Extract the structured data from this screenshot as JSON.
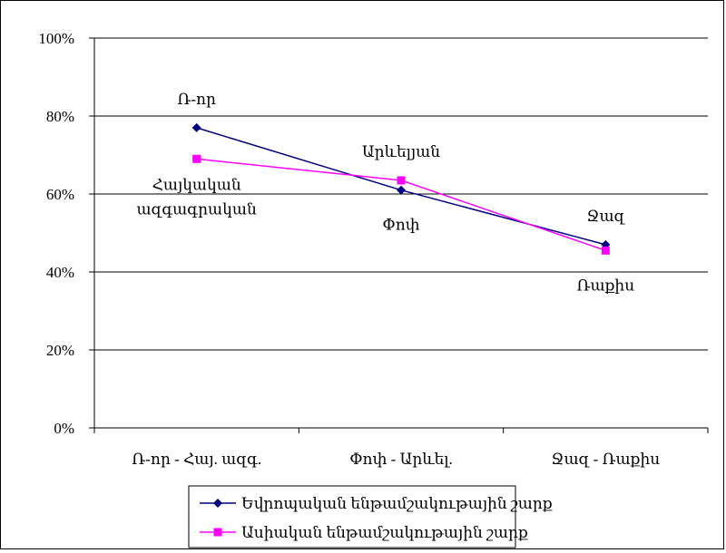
{
  "chart_data": {
    "type": "line",
    "categories": [
      "Ռ-որ - Հայ. ազգ.",
      "Փոփ - Արևել.",
      "Ջազ - Ռաքիս"
    ],
    "ylim": [
      0,
      100
    ],
    "yticks": [
      "0%",
      "20%",
      "40%",
      "60%",
      "80%",
      "100%"
    ],
    "grid": true,
    "legend_position": "bottom",
    "series": [
      {
        "name": "Եվրոպական ենթամշակութային շարք",
        "values": [
          77,
          61,
          47
        ],
        "color": "#000080",
        "marker": "diamond",
        "point_labels": [
          "Ռ-որ",
          "Փոփ",
          "Ջազ"
        ]
      },
      {
        "name": "Ասիական ենթամշակութային շարք",
        "values": [
          69,
          63.5,
          45.5
        ],
        "color": "#FF00FF",
        "marker": "square",
        "point_labels": [
          "Հայկական ազգագրական",
          "Արևելյան",
          "Ռաքիս"
        ]
      }
    ]
  }
}
